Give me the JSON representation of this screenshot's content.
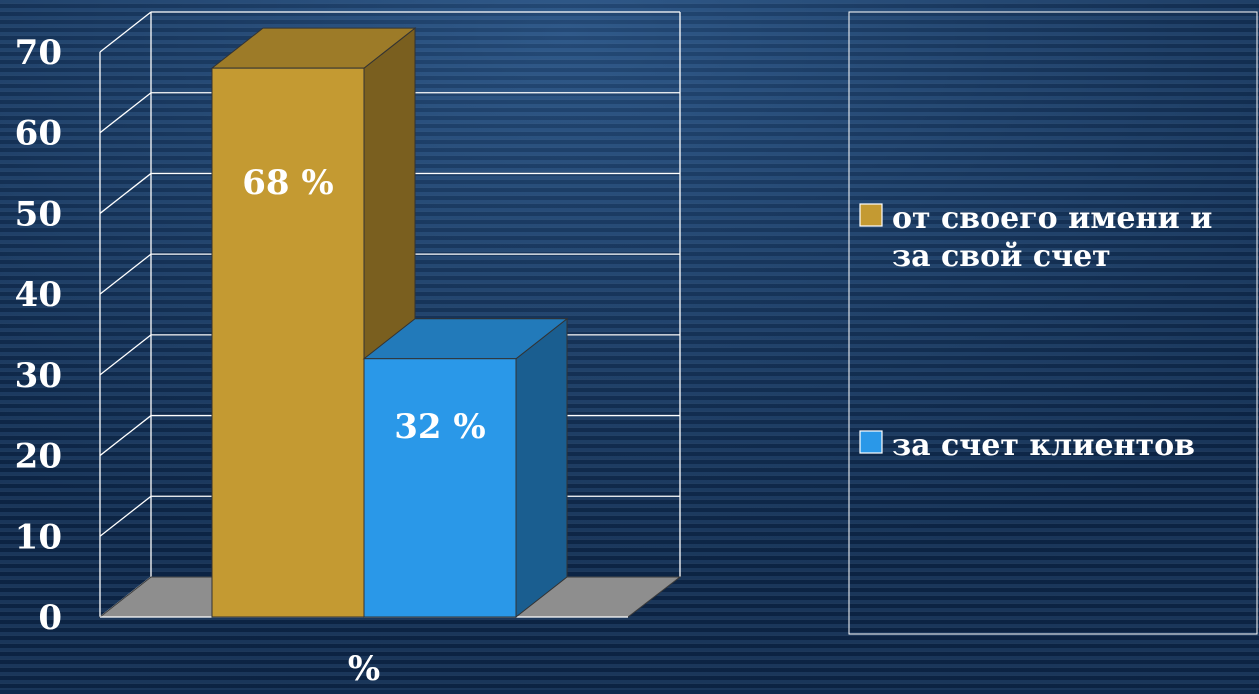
{
  "chart_data": {
    "type": "bar",
    "style": "3d-clustered",
    "categories": [
      "%"
    ],
    "xlabel": "%",
    "ylim": [
      0,
      70
    ],
    "yticks": [
      0,
      10,
      20,
      30,
      40,
      50,
      60,
      70
    ],
    "grid": true,
    "legend_placement": "right",
    "series": [
      {
        "name": "от  своего имени и за свой счет",
        "values": [
          68
        ],
        "label": "68 %",
        "color": "#c49a32"
      },
      {
        "name": "за  счет клиентов",
        "values": [
          32
        ],
        "label": "32 %",
        "color": "#2a98e8"
      }
    ],
    "legend": [
      {
        "lines": [
          "от  своего имени и",
          "за свой счет"
        ],
        "color": "#c49a32"
      },
      {
        "lines": [
          "за  счет клиентов"
        ],
        "color": "#2a98e8"
      }
    ]
  }
}
